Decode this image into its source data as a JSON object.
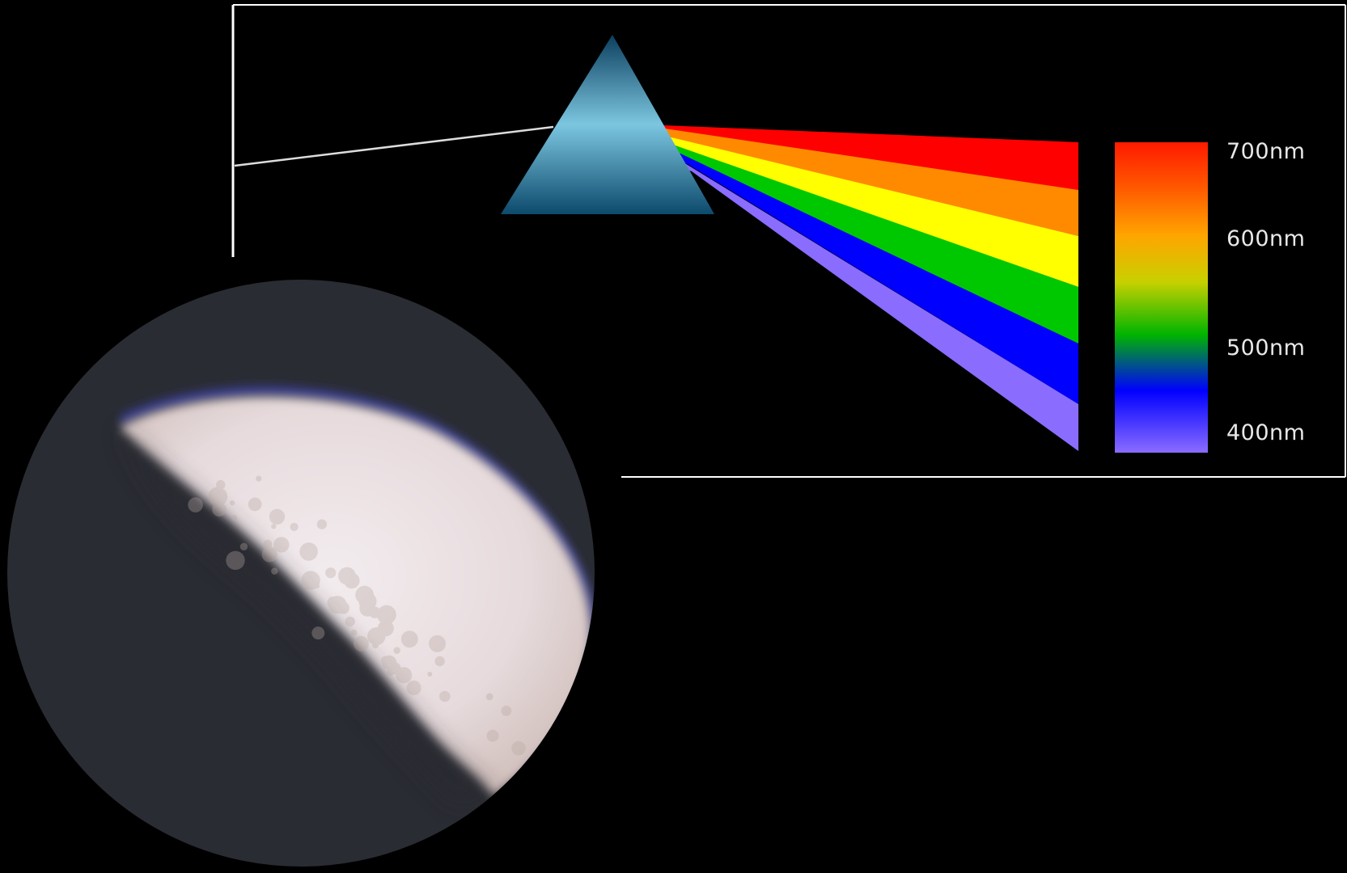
{
  "diagram": {
    "background_color": "#000000",
    "frame_color": "#ffffff",
    "incoming_ray_color": "#dcdcdc",
    "prism": {
      "color_top": "#0b3f5e",
      "color_mid": "#7cc6e0",
      "color_bottom": "#0d4a6c"
    },
    "bands": [
      {
        "name": "red",
        "color": "#ff0000"
      },
      {
        "name": "orange",
        "color": "#ff8a00"
      },
      {
        "name": "yellow",
        "color": "#ffff00"
      },
      {
        "name": "green",
        "color": "#00c800"
      },
      {
        "name": "blue",
        "color": "#0000ff"
      },
      {
        "name": "violet",
        "color": "#8a6cff"
      }
    ],
    "scale_gradient": [
      {
        "stop": 0.0,
        "color": "#ff1a00"
      },
      {
        "stop": 0.15,
        "color": "#ff5a00"
      },
      {
        "stop": 0.3,
        "color": "#ffa500"
      },
      {
        "stop": 0.45,
        "color": "#c8d000"
      },
      {
        "stop": 0.62,
        "color": "#00b400"
      },
      {
        "stop": 0.8,
        "color": "#0000ff"
      },
      {
        "stop": 1.0,
        "color": "#8a6cff"
      }
    ],
    "wavelength_labels": [
      "700nm",
      "600nm",
      "500nm",
      "400nm"
    ]
  },
  "moon_photo": {
    "background_color": "#2a2c33",
    "lit_color": "#ece3e6",
    "shadow_tint": "#b8a8a2",
    "limb_color": "#3a3fa0"
  }
}
